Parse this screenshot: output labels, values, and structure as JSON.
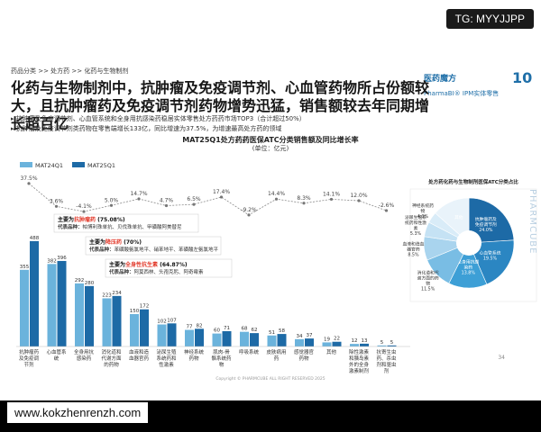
{
  "watermark_top": "TG: MYYJJPP",
  "breadcrumb": "药品分类 >> 处方药 >> 化药与生物制剂",
  "logo": {
    "name": "医药魔方",
    "badge": "10",
    "sub": "PharmaBI® IPM实体零售"
  },
  "heading": "化药与生物制剂中，抗肿瘤及免疫调节剂、心血管药物所占份额较大，且抗肿瘤药及免疫调节剂药物增势迅猛，销售额较去年同期增长超百亿",
  "bullets": [
    "抗肿瘤及免疫调节剂、心血管系统和全身用抗感染药稳居实体零售处方药药市场TOP3（合计超过50%）",
    "抗肿瘤及免疫调节剂类药物在零售端增长133亿，同比增速为37.5%，为增速最高处方药的领域"
  ],
  "side_watermark": "PHARMCUBE",
  "copyright": "Copyright © PHARMCUBE ALL RIGHT RESERVED 2025",
  "page_number": "34",
  "bottom_url": "www.kokzhenrenzh.com",
  "colors": {
    "mat24": "#6bb3dc",
    "mat25": "#1d6aa6",
    "growth_line": "#8a8a8a",
    "callout_red": "#e23a2b"
  },
  "callouts": [
    {
      "title_prefix": "主要为",
      "title_hl": "抗肿瘤药",
      "title_suffix": " (75.08%)",
      "rep_label": "代表品种：",
      "rep": "帕博利珠单抗、贝伐珠单抗、甲磺酸阿美替尼"
    },
    {
      "title_prefix": "主要为",
      "title_hl": "降压药",
      "title_suffix": " (70%)",
      "rep_label": "代表品种：",
      "rep": "苯磺酸氨氯地平、硝苯地平、苯磺酸左氨氯地平"
    },
    {
      "title_prefix": "主要为",
      "title_hl": "全身性抗生素",
      "title_suffix": " (64.87%)",
      "rep_label": "代表品种：",
      "rep": "阿莫西林、头孢克肟、阿奇霉素"
    }
  ],
  "chart_data": [
    {
      "type": "bar",
      "title": "MAT25Q1处方药药医保ATC分类销售额及同比增长率",
      "unit": "(单位：亿元)",
      "categories": [
        "抗肿瘤药及免疫调节剂",
        "心血管系统",
        "全身用抗感染药",
        "消化道和代谢方面的药物",
        "血液和造血器官药",
        "泌尿生殖系统药和性激素",
        "神经系统药物",
        "肌肉-骨骼系统药物",
        "呼吸系统",
        "皮肤病用药",
        "感觉器官药物",
        "其他",
        "除性激素和胰岛素外的全身激素制剂",
        "抗寄生虫药、杀虫剂和驱虫剂"
      ],
      "series": [
        {
          "name": "MAT24Q1",
          "values": [
            355,
            382,
            292,
            223,
            150,
            102,
            77,
            60,
            68,
            51,
            34,
            19,
            12,
            5
          ]
        },
        {
          "name": "MAT25Q1",
          "values": [
            488,
            396,
            280,
            234,
            172,
            107,
            82,
            71,
            62,
            58,
            37,
            22,
            13,
            5
          ]
        }
      ],
      "growth_rate_labels": [
        "37.5%",
        "3.6%",
        "-4.1%",
        "5.0%",
        "14.7%",
        "4.7%",
        "6.5%",
        "17.4%",
        "-9.2%",
        "14.4%",
        "8.3%",
        "14.1%",
        "12.0%",
        "-2.6%"
      ],
      "growth_rate": [
        37.5,
        3.6,
        -4.1,
        5.0,
        14.7,
        4.7,
        6.5,
        17.4,
        -9.2,
        14.4,
        8.3,
        14.1,
        12.0,
        -2.6
      ],
      "legend_placement": "top-left"
    },
    {
      "type": "pie",
      "title": "处方药化药与生物制剂医保ATC分类占比",
      "slices": [
        {
          "label": "抗肿瘤药及免疫调节剂",
          "value": 24.0,
          "value_label": "24.0%",
          "color": "#1d6aa6"
        },
        {
          "label": "心血管系统",
          "value": 19.5,
          "value_label": "19.5%",
          "color": "#2b86c2"
        },
        {
          "label": "全身用抗感染药",
          "value": 13.8,
          "value_label": "13.8%",
          "color": "#3d9fd6"
        },
        {
          "label": "消化道和代谢方面的药物",
          "value": 11.5,
          "value_label": "11.5%",
          "color": "#79bde4"
        },
        {
          "label": "血液和造血器官药",
          "value": 8.5,
          "value_label": "8.5%",
          "color": "#a9d4ee"
        },
        {
          "label": "泌尿生殖系统药和性激素",
          "value": 5.3,
          "value_label": "5.3%",
          "color": "#c5e2f4"
        },
        {
          "label": "神经系统药物",
          "value": 4.0,
          "value_label": "4.0%",
          "color": "#d9ecf8"
        },
        {
          "label": "其他",
          "value": 13.4,
          "value_label": "",
          "color": "#e9f3fa"
        }
      ]
    }
  ]
}
